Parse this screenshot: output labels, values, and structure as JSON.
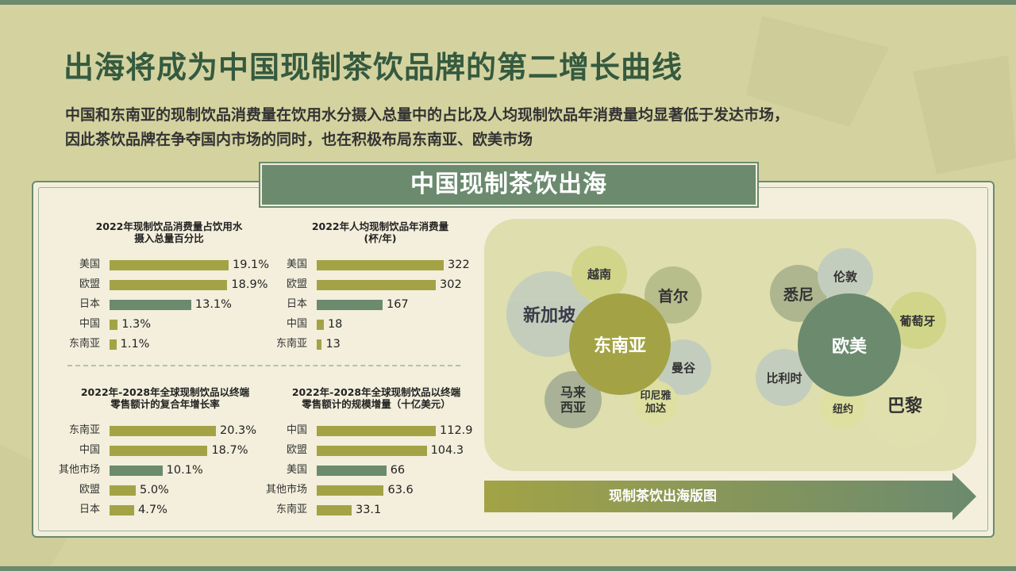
{
  "header": {
    "title": "出海将成为中国现制茶饮品牌的第二增长曲线",
    "subtitle_line1": "中国和东南亚的现制饮品消费量在饮用水分摄入总量中的占比及人均现制饮品年消费量均显著低于发达市场，",
    "subtitle_line2": "因此茶饮品牌在争夺国内市场的同时，也在积极布局东南亚、欧美市场"
  },
  "banner": {
    "label": "中国现制茶饮出海"
  },
  "colors": {
    "olive": "#a3a346",
    "green": "#6b8a6e"
  },
  "chart_data": [
    {
      "type": "bar",
      "title_line1": "2022年现制饮品消费量占饮用水",
      "title_line2": "摄入总量百分比",
      "categories": [
        "美国",
        "欧盟",
        "日本",
        "中国",
        "东南亚"
      ],
      "values": [
        19.1,
        18.9,
        13.1,
        1.3,
        1.1
      ],
      "value_labels": [
        "19.1%",
        "18.9%",
        "13.1%",
        "1.3%",
        "1.1%"
      ],
      "highlight_index": 2,
      "xlim": [
        0,
        19.1
      ]
    },
    {
      "type": "bar",
      "title_line1": "2022年人均现制饮品年消费量",
      "title_line2": "(杯/年)",
      "categories": [
        "美国",
        "欧盟",
        "日本",
        "中国",
        "东南亚"
      ],
      "values": [
        322,
        302,
        167,
        18,
        13
      ],
      "value_labels": [
        "322",
        "302",
        "167",
        "18",
        "13"
      ],
      "highlight_index": 2,
      "xlim": [
        0,
        322
      ]
    },
    {
      "type": "bar",
      "title_line1": "2022年-2028年全球现制饮品以终端",
      "title_line2": "零售额计的复合年增长率",
      "categories": [
        "东南亚",
        "中国",
        "其他市场",
        "欧盟",
        "日本"
      ],
      "values": [
        20.3,
        18.7,
        10.1,
        5.0,
        4.7
      ],
      "value_labels": [
        "20.3%",
        "18.7%",
        "10.1%",
        "5.0%",
        "4.7%"
      ],
      "highlight_index": 2,
      "xlim": [
        0,
        20.3
      ]
    },
    {
      "type": "bar",
      "title_line1": "2022年-2028年全球现制饮品以终端",
      "title_line2": "零售额计的规模增量（十亿美元）",
      "categories": [
        "中国",
        "欧盟",
        "美国",
        "其他市场",
        "东南亚"
      ],
      "values": [
        112.9,
        104.3,
        66,
        63.6,
        33.1
      ],
      "value_labels": [
        "112.9",
        "104.3",
        "66",
        "63.6",
        "33.1"
      ],
      "highlight_index": 2,
      "xlim": [
        0,
        112.9
      ]
    }
  ],
  "bubble_map": {
    "left_center": "东南亚",
    "left_items": [
      "新加坡",
      "越南",
      "首尔",
      "曼谷",
      "印尼雅加达",
      "马来西亚"
    ],
    "right_center": "欧美",
    "right_items": [
      "悉尼",
      "伦敦",
      "葡萄牙",
      "巴黎",
      "纽约",
      "比利时"
    ],
    "footer": "现制茶饮出海版图"
  }
}
